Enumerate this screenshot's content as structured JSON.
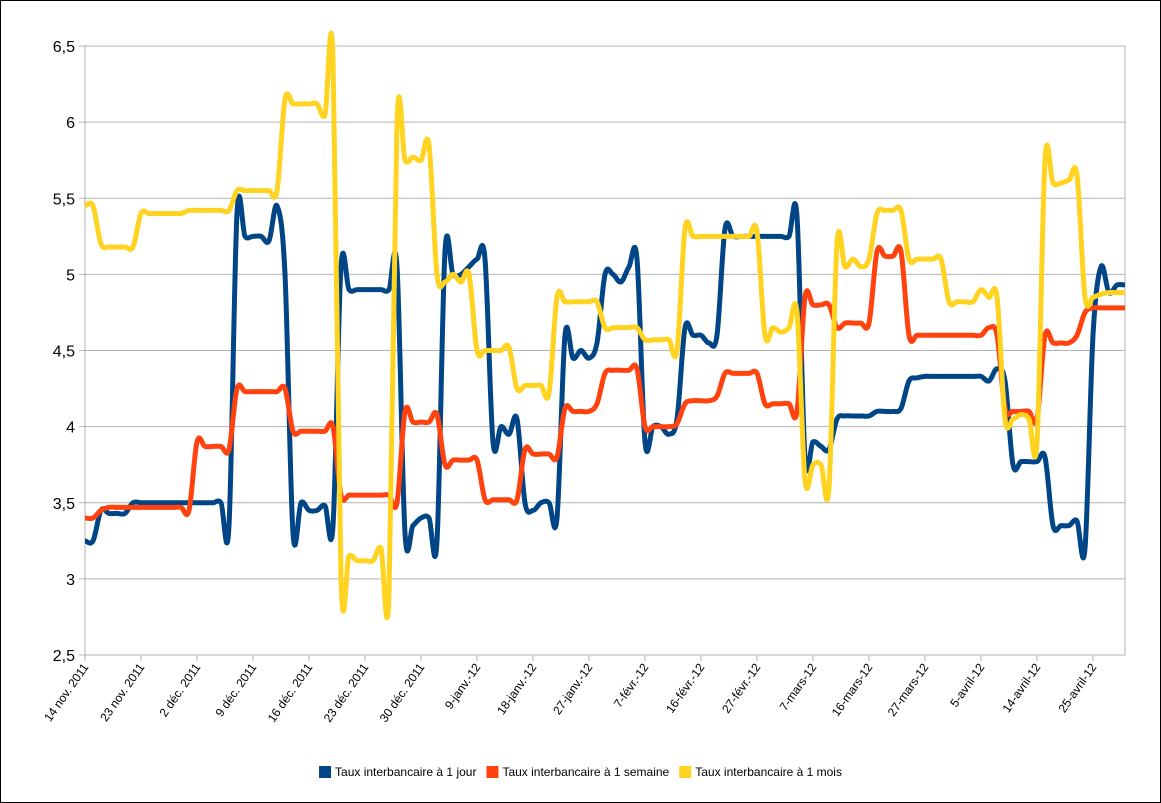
{
  "chart_data": {
    "type": "line",
    "categories": [
      "14 nov. 2011",
      null,
      null,
      null,
      null,
      null,
      null,
      "23 nov. 2011",
      null,
      null,
      null,
      null,
      null,
      null,
      "2 déc. 2011",
      null,
      null,
      null,
      null,
      null,
      null,
      "9 déc. 2011",
      null,
      null,
      null,
      null,
      null,
      null,
      "16 déc. 2011",
      null,
      null,
      null,
      null,
      null,
      null,
      "23 déc. 2011",
      null,
      null,
      null,
      null,
      null,
      null,
      "30 déc. 2011",
      null,
      null,
      null,
      null,
      null,
      null,
      "9-janv.-12",
      null,
      null,
      null,
      null,
      null,
      null,
      "18-janv.-12",
      null,
      null,
      null,
      null,
      null,
      null,
      "27-janv.-12",
      null,
      null,
      null,
      null,
      null,
      null,
      "7-févr.-12",
      null,
      null,
      null,
      null,
      null,
      null,
      "16-févr.-12",
      null,
      null,
      null,
      null,
      null,
      null,
      "27-févr.-12",
      null,
      null,
      null,
      null,
      null,
      null,
      "7-mars-12",
      null,
      null,
      null,
      null,
      null,
      null,
      "16-mars-12",
      null,
      null,
      null,
      null,
      null,
      null,
      "27-mars-12",
      null,
      null,
      null,
      null,
      null,
      null,
      "5-avril-12",
      null,
      null,
      null,
      null,
      null,
      null,
      "14-avril-12",
      null,
      null,
      null,
      null,
      null,
      null,
      "25-avril-12",
      null,
      null,
      null,
      null
    ],
    "series": [
      {
        "name": "Taux interbancaire à 1 jour",
        "color": "#004586",
        "values": [
          3.25,
          3.25,
          3.45,
          3.43,
          3.43,
          3.43,
          3.5,
          3.5,
          3.5,
          3.5,
          3.5,
          3.5,
          3.5,
          3.5,
          3.5,
          3.5,
          3.5,
          3.5,
          3.35,
          5.4,
          5.25,
          5.25,
          5.25,
          5.22,
          5.45,
          5,
          3.3,
          3.5,
          3.45,
          3.45,
          3.48,
          3.35,
          5.05,
          4.9,
          4.9,
          4.9,
          4.9,
          4.9,
          4.9,
          5.05,
          3.3,
          3.35,
          3.4,
          3.4,
          3.25,
          5.15,
          5,
          5,
          5.05,
          5.1,
          5.1,
          3.9,
          4,
          3.95,
          4.05,
          3.5,
          3.45,
          3.5,
          3.5,
          3.4,
          4.6,
          4.45,
          4.5,
          4.45,
          4.55,
          5,
          5,
          4.95,
          5.05,
          5.1,
          3.9,
          4,
          4,
          3.95,
          4.05,
          4.65,
          4.6,
          4.6,
          4.55,
          4.6,
          5.3,
          5.25,
          5.25,
          5.25,
          5.25,
          5.25,
          5.25,
          5.25,
          5.25,
          5.38,
          3.8,
          3.9,
          3.87,
          3.85,
          4.05,
          4.07,
          4.07,
          4.07,
          4.07,
          4.1,
          4.1,
          4.1,
          4.12,
          4.3,
          4.32,
          4.33,
          4.33,
          4.33,
          4.33,
          4.33,
          4.33,
          4.33,
          4.33,
          4.3,
          4.38,
          4.3,
          3.75,
          3.77,
          3.77,
          3.77,
          3.8,
          3.35,
          3.35,
          3.35,
          3.38,
          3.2,
          4.6,
          5.05,
          4.88,
          4.93,
          4.93
        ]
      },
      {
        "name": "Taux interbancaire à 1 semaine",
        "color": "#ff420e",
        "values": [
          3.4,
          3.4,
          3.45,
          3.47,
          3.47,
          3.47,
          3.47,
          3.47,
          3.47,
          3.47,
          3.47,
          3.47,
          3.47,
          3.45,
          3.9,
          3.87,
          3.87,
          3.87,
          3.85,
          4.25,
          4.23,
          4.23,
          4.23,
          4.23,
          4.23,
          4.25,
          3.97,
          3.97,
          3.97,
          3.97,
          3.97,
          4,
          3.55,
          3.55,
          3.55,
          3.55,
          3.55,
          3.55,
          3.55,
          3.5,
          4.1,
          4.03,
          4.03,
          4.03,
          4.08,
          3.75,
          3.78,
          3.78,
          3.78,
          3.78,
          3.52,
          3.52,
          3.52,
          3.52,
          3.52,
          3.85,
          3.82,
          3.82,
          3.82,
          3.8,
          4.12,
          4.1,
          4.1,
          4.1,
          4.15,
          4.35,
          4.37,
          4.37,
          4.37,
          4.38,
          4,
          4,
          4,
          4,
          4.02,
          4.15,
          4.17,
          4.17,
          4.17,
          4.2,
          4.35,
          4.35,
          4.35,
          4.35,
          4.35,
          4.15,
          4.15,
          4.15,
          4.15,
          4.1,
          4.85,
          4.8,
          4.8,
          4.8,
          4.65,
          4.68,
          4.68,
          4.68,
          4.68,
          5.15,
          5.12,
          5.12,
          5.15,
          4.6,
          4.6,
          4.6,
          4.6,
          4.6,
          4.6,
          4.6,
          4.6,
          4.6,
          4.6,
          4.65,
          4.6,
          4.12,
          4.1,
          4.1,
          4.1,
          4.05,
          4.6,
          4.55,
          4.55,
          4.55,
          4.6,
          4.75,
          4.78,
          4.78,
          4.78,
          4.78,
          4.78
        ]
      },
      {
        "name": "Taux interbancaire à 1 mois",
        "color": "#ffd320",
        "values": [
          5.45,
          5.45,
          5.2,
          5.18,
          5.18,
          5.18,
          5.18,
          5.4,
          5.4,
          5.4,
          5.4,
          5.4,
          5.4,
          5.42,
          5.42,
          5.42,
          5.42,
          5.42,
          5.42,
          5.55,
          5.55,
          5.55,
          5.55,
          5.55,
          5.55,
          6.15,
          6.12,
          6.12,
          6.12,
          6.12,
          6.05,
          6.42,
          3,
          3.15,
          3.12,
          3.12,
          3.12,
          3.2,
          2.9,
          6,
          5.75,
          5.77,
          5.75,
          5.85,
          5,
          4.95,
          5,
          4.95,
          5,
          4.5,
          4.5,
          4.5,
          4.5,
          4.52,
          4.25,
          4.27,
          4.27,
          4.27,
          4.22,
          4.85,
          4.82,
          4.82,
          4.82,
          4.82,
          4.82,
          4.65,
          4.65,
          4.65,
          4.65,
          4.65,
          4.57,
          4.57,
          4.57,
          4.57,
          4.5,
          5.3,
          5.25,
          5.25,
          5.25,
          5.25,
          5.25,
          5.25,
          5.25,
          5.25,
          5.28,
          4.6,
          4.65,
          4.62,
          4.65,
          4.75,
          3.65,
          3.75,
          3.75,
          3.6,
          5.2,
          5.05,
          5.1,
          5.05,
          5.1,
          5.4,
          5.42,
          5.42,
          5.42,
          5.1,
          5.1,
          5.1,
          5.1,
          5.1,
          4.82,
          4.82,
          4.82,
          4.82,
          4.9,
          4.85,
          4.85,
          4.05,
          4.05,
          4.08,
          4.05,
          3.9,
          5.75,
          5.6,
          5.6,
          5.62,
          5.65,
          4.85,
          4.85,
          4.87,
          4.88,
          4.88,
          4.88
        ]
      }
    ],
    "ylim": [
      2.5,
      6.5
    ],
    "yticks": [
      {
        "value": 2.5,
        "label": "2,5"
      },
      3,
      {
        "value": 3.5,
        "label": "3,5"
      },
      4,
      {
        "value": 4.5,
        "label": "4,5"
      },
      5,
      {
        "value": 5.5,
        "label": "5,5"
      },
      6,
      {
        "value": 6.5,
        "label": "6,5"
      }
    ],
    "grid": true,
    "legend": "bottom"
  }
}
